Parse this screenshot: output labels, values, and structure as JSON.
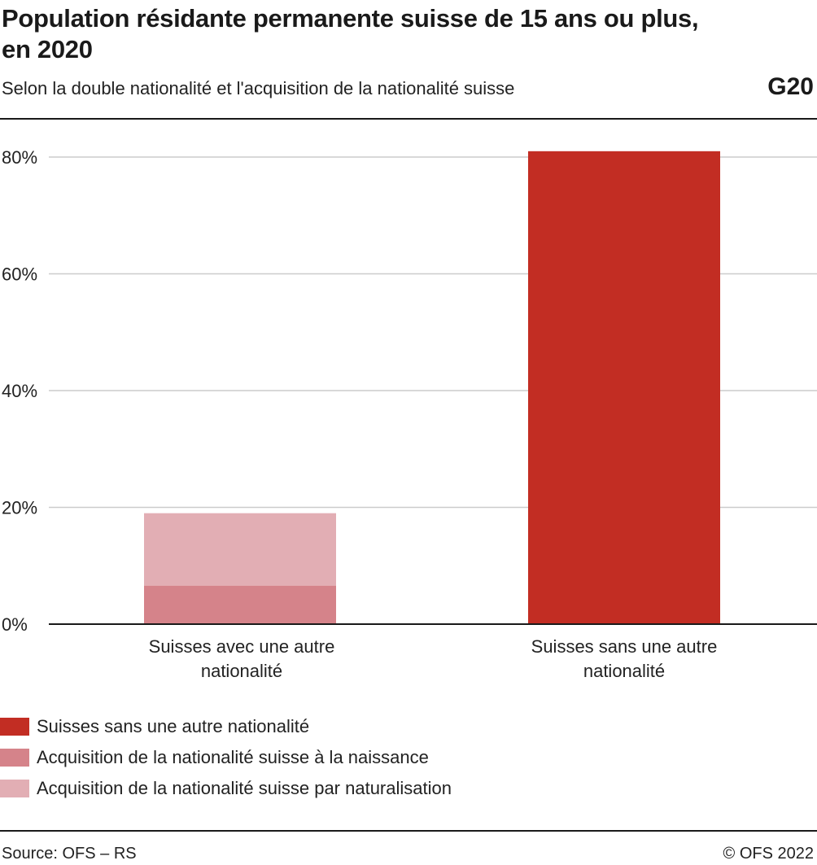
{
  "header": {
    "title": "Population résidante permanente suisse de 15 ans ou plus, en 2020",
    "subtitle": "Selon la double nationalité et l'acquisition de la nationalité suisse",
    "graphic_number": "G20"
  },
  "footer": {
    "source": "Source: OFS – RS",
    "copyright": "© OFS 2022"
  },
  "colors": {
    "sans_autre": "#c22d23",
    "naissance": "#d5838a",
    "naturalisation": "#e2aeb4",
    "grid": "#cccccc",
    "axis": "#1a1a1a"
  },
  "chart_data": {
    "type": "bar",
    "stacked": true,
    "categories": [
      "Suisses avec une autre nationalité",
      "Suisses sans une autre nationalité"
    ],
    "series": [
      {
        "name": "Suisses sans une autre nationalité",
        "color": "#c22d23",
        "values": [
          0,
          81
        ]
      },
      {
        "name": "Acquisition de la nationalité suisse à la naissance",
        "color": "#d5838a",
        "values": [
          6.6,
          0
        ]
      },
      {
        "name": "Acquisition de la nationalité suisse par naturalisation",
        "color": "#e2aeb4",
        "values": [
          12.4,
          0
        ]
      }
    ],
    "yticks": [
      0,
      20,
      40,
      60,
      80
    ],
    "ytick_labels": [
      "0%",
      "20%",
      "40%",
      "60%",
      "80%"
    ],
    "ylim": [
      0,
      84
    ],
    "grid": true,
    "legend_position": "bottom-left"
  }
}
